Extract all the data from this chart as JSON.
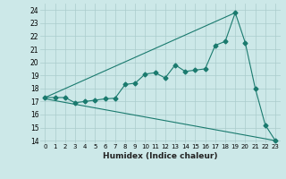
{
  "xlabel": "Humidex (Indice chaleur)",
  "bg_color": "#cce8e8",
  "line_color": "#1a7a6e",
  "grid_color": "#aacccc",
  "xlim": [
    -0.5,
    23.5
  ],
  "ylim": [
    13.8,
    24.5
  ],
  "yticks": [
    14,
    15,
    16,
    17,
    18,
    19,
    20,
    21,
    22,
    23,
    24
  ],
  "xticks": [
    0,
    1,
    2,
    3,
    4,
    5,
    6,
    7,
    8,
    9,
    10,
    11,
    12,
    13,
    14,
    15,
    16,
    17,
    18,
    19,
    20,
    21,
    22,
    23
  ],
  "xtick_labels": [
    "0",
    "1",
    "2",
    "3",
    "4",
    "5",
    "6",
    "7",
    "8",
    "9",
    "10",
    "11",
    "12",
    "13",
    "14",
    "15",
    "16",
    "17",
    "18",
    "19",
    "20",
    "21",
    "22",
    "23"
  ],
  "upper_line": {
    "x": [
      0,
      19
    ],
    "y": [
      17.3,
      23.8
    ]
  },
  "lower_line": {
    "x": [
      0,
      23
    ],
    "y": [
      17.2,
      14.0
    ]
  },
  "main_line": {
    "x": [
      0,
      1,
      2,
      3,
      4,
      5,
      6,
      7,
      8,
      9,
      10,
      11,
      12,
      13,
      14,
      15,
      16,
      17,
      18,
      19,
      20,
      21,
      22,
      23
    ],
    "y": [
      17.3,
      17.3,
      17.3,
      16.9,
      17.0,
      17.1,
      17.2,
      17.25,
      18.3,
      18.4,
      19.1,
      19.2,
      18.8,
      19.8,
      19.3,
      19.4,
      19.5,
      21.3,
      21.6,
      23.8,
      21.5,
      18.0,
      15.2,
      14.0
    ]
  }
}
